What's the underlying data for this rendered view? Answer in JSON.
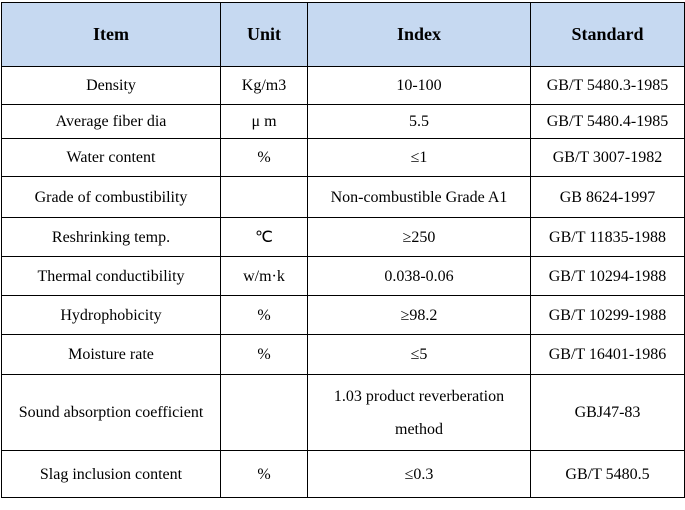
{
  "table": {
    "header": [
      "Item",
      "Unit",
      "Index",
      "Standard"
    ],
    "rows": [
      [
        "Density",
        "Kg/m3",
        "10-100",
        "GB/T 5480.3-1985"
      ],
      [
        "Average fiber dia",
        "μ m",
        "5.5",
        "GB/T 5480.4-1985"
      ],
      [
        "Water content",
        "%",
        "≤1",
        "GB/T 3007-1982"
      ],
      [
        "Grade of combustibility",
        null,
        "Non-combustible Grade A1",
        "GB 8624-1997"
      ],
      [
        "Reshrinking temp.",
        "℃",
        "≥250",
        "GB/T 11835-1988"
      ],
      [
        "Thermal conductibility",
        "w/m·k",
        "0.038-0.06",
        "GB/T 10294-1988"
      ],
      [
        "Hydrophobicity",
        "%",
        "≥98.2",
        "GB/T 10299-1988"
      ],
      [
        "Moisture rate",
        "%",
        "≤5",
        "GB/T 16401-1986"
      ],
      [
        "Sound absorption coefficient",
        null,
        "1.03 product reverberation method",
        "GBJ47-83"
      ],
      [
        "Slag inclusion content",
        "%",
        "≤0.3",
        "GB/T 5480.5"
      ]
    ]
  }
}
